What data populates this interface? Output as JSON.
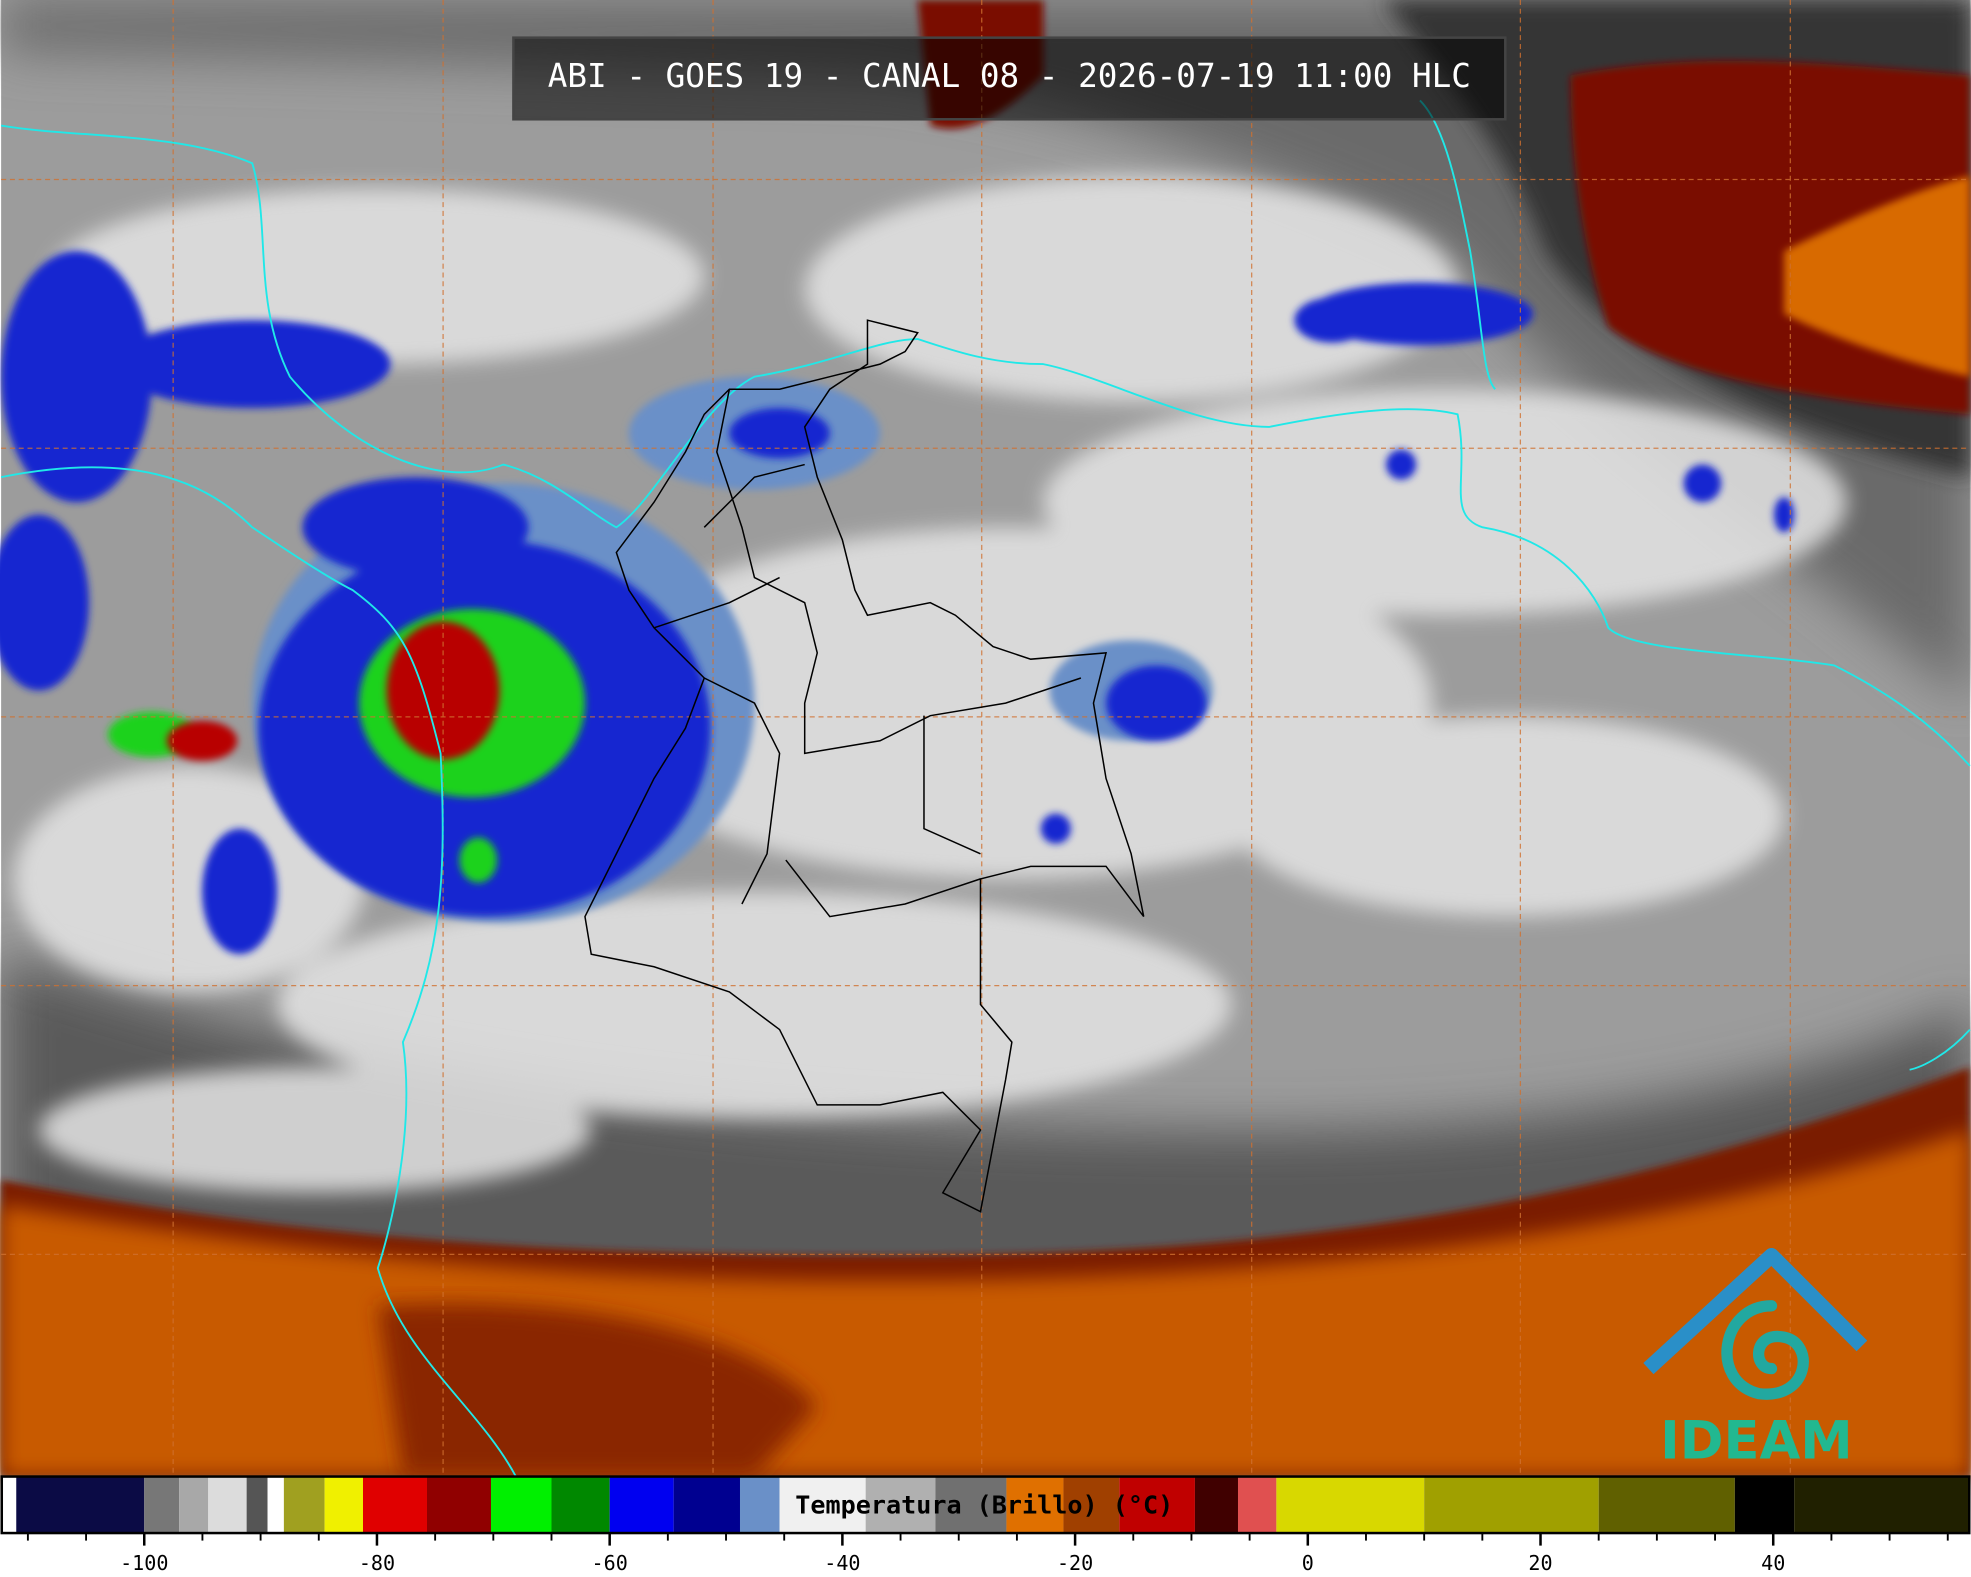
{
  "title": "ABI - GOES 19 - CANAL 08 - 2026-07-19 11:00 HLC",
  "colorbar": {
    "label": "Temperatura (Brillo) (°C)",
    "xlim": [
      -112.3,
      56.9
    ],
    "ticks": [
      -100,
      -80,
      -60,
      -40,
      -20,
      0,
      20,
      40
    ],
    "minor_ticks": [
      -110,
      -105,
      -95,
      -90,
      -85,
      -75,
      -70,
      -65,
      -55,
      -50,
      -45,
      -35,
      -30,
      -25,
      -15,
      -10,
      -5,
      5,
      10,
      15,
      25,
      30,
      35,
      45,
      50,
      55
    ],
    "segments": [
      {
        "from": -112.3,
        "to": -111,
        "color": "#ffffff"
      },
      {
        "from": -111,
        "to": -100,
        "color": "#0b0b45"
      },
      {
        "from": -100,
        "to": -97,
        "color": "#777777"
      },
      {
        "from": -97,
        "to": -94.5,
        "color": "#a8a8a8"
      },
      {
        "from": -94.5,
        "to": -91.2,
        "color": "#dcdcdc"
      },
      {
        "from": -91.2,
        "to": -89.4,
        "color": "#555555"
      },
      {
        "from": -89.4,
        "to": -88,
        "color": "#ffffff"
      },
      {
        "from": -88,
        "to": -84.5,
        "color": "#a0a020"
      },
      {
        "from": -84.5,
        "to": -81.2,
        "color": "#f0f000"
      },
      {
        "from": -81.2,
        "to": -75.7,
        "color": "#e00000"
      },
      {
        "from": -75.7,
        "to": -70.2,
        "color": "#900000"
      },
      {
        "from": -70.2,
        "to": -65,
        "color": "#00f000"
      },
      {
        "from": -65,
        "to": -60,
        "color": "#008800"
      },
      {
        "from": -60,
        "to": -54.5,
        "color": "#0000f0"
      },
      {
        "from": -54.5,
        "to": -48.8,
        "color": "#000090"
      },
      {
        "from": -48.8,
        "to": -45.4,
        "color": "#6a90c8"
      },
      {
        "from": -45.4,
        "to": -38,
        "color": "#f0f0f0"
      },
      {
        "from": -38,
        "to": -32,
        "color": "#b0b0b0"
      },
      {
        "from": -32,
        "to": -25.9,
        "color": "#707070"
      },
      {
        "from": -25.9,
        "to": -21,
        "color": "#e07000"
      },
      {
        "from": -21,
        "to": -16.2,
        "color": "#a04000"
      },
      {
        "from": -16.2,
        "to": -9.7,
        "color": "#c00000"
      },
      {
        "from": -9.7,
        "to": -6,
        "color": "#400000"
      },
      {
        "from": -6,
        "to": -2.7,
        "color": "#e05050"
      },
      {
        "from": -2.7,
        "to": 10,
        "color": "#d8d800"
      },
      {
        "from": 10,
        "to": 25,
        "color": "#a0a000"
      },
      {
        "from": 25,
        "to": 36.7,
        "color": "#606000"
      },
      {
        "from": 36.7,
        "to": 41.8,
        "color": "#000000"
      },
      {
        "from": 41.8,
        "to": 56.9,
        "color": "#202000"
      }
    ]
  },
  "logo": {
    "text": "IDEAM"
  }
}
